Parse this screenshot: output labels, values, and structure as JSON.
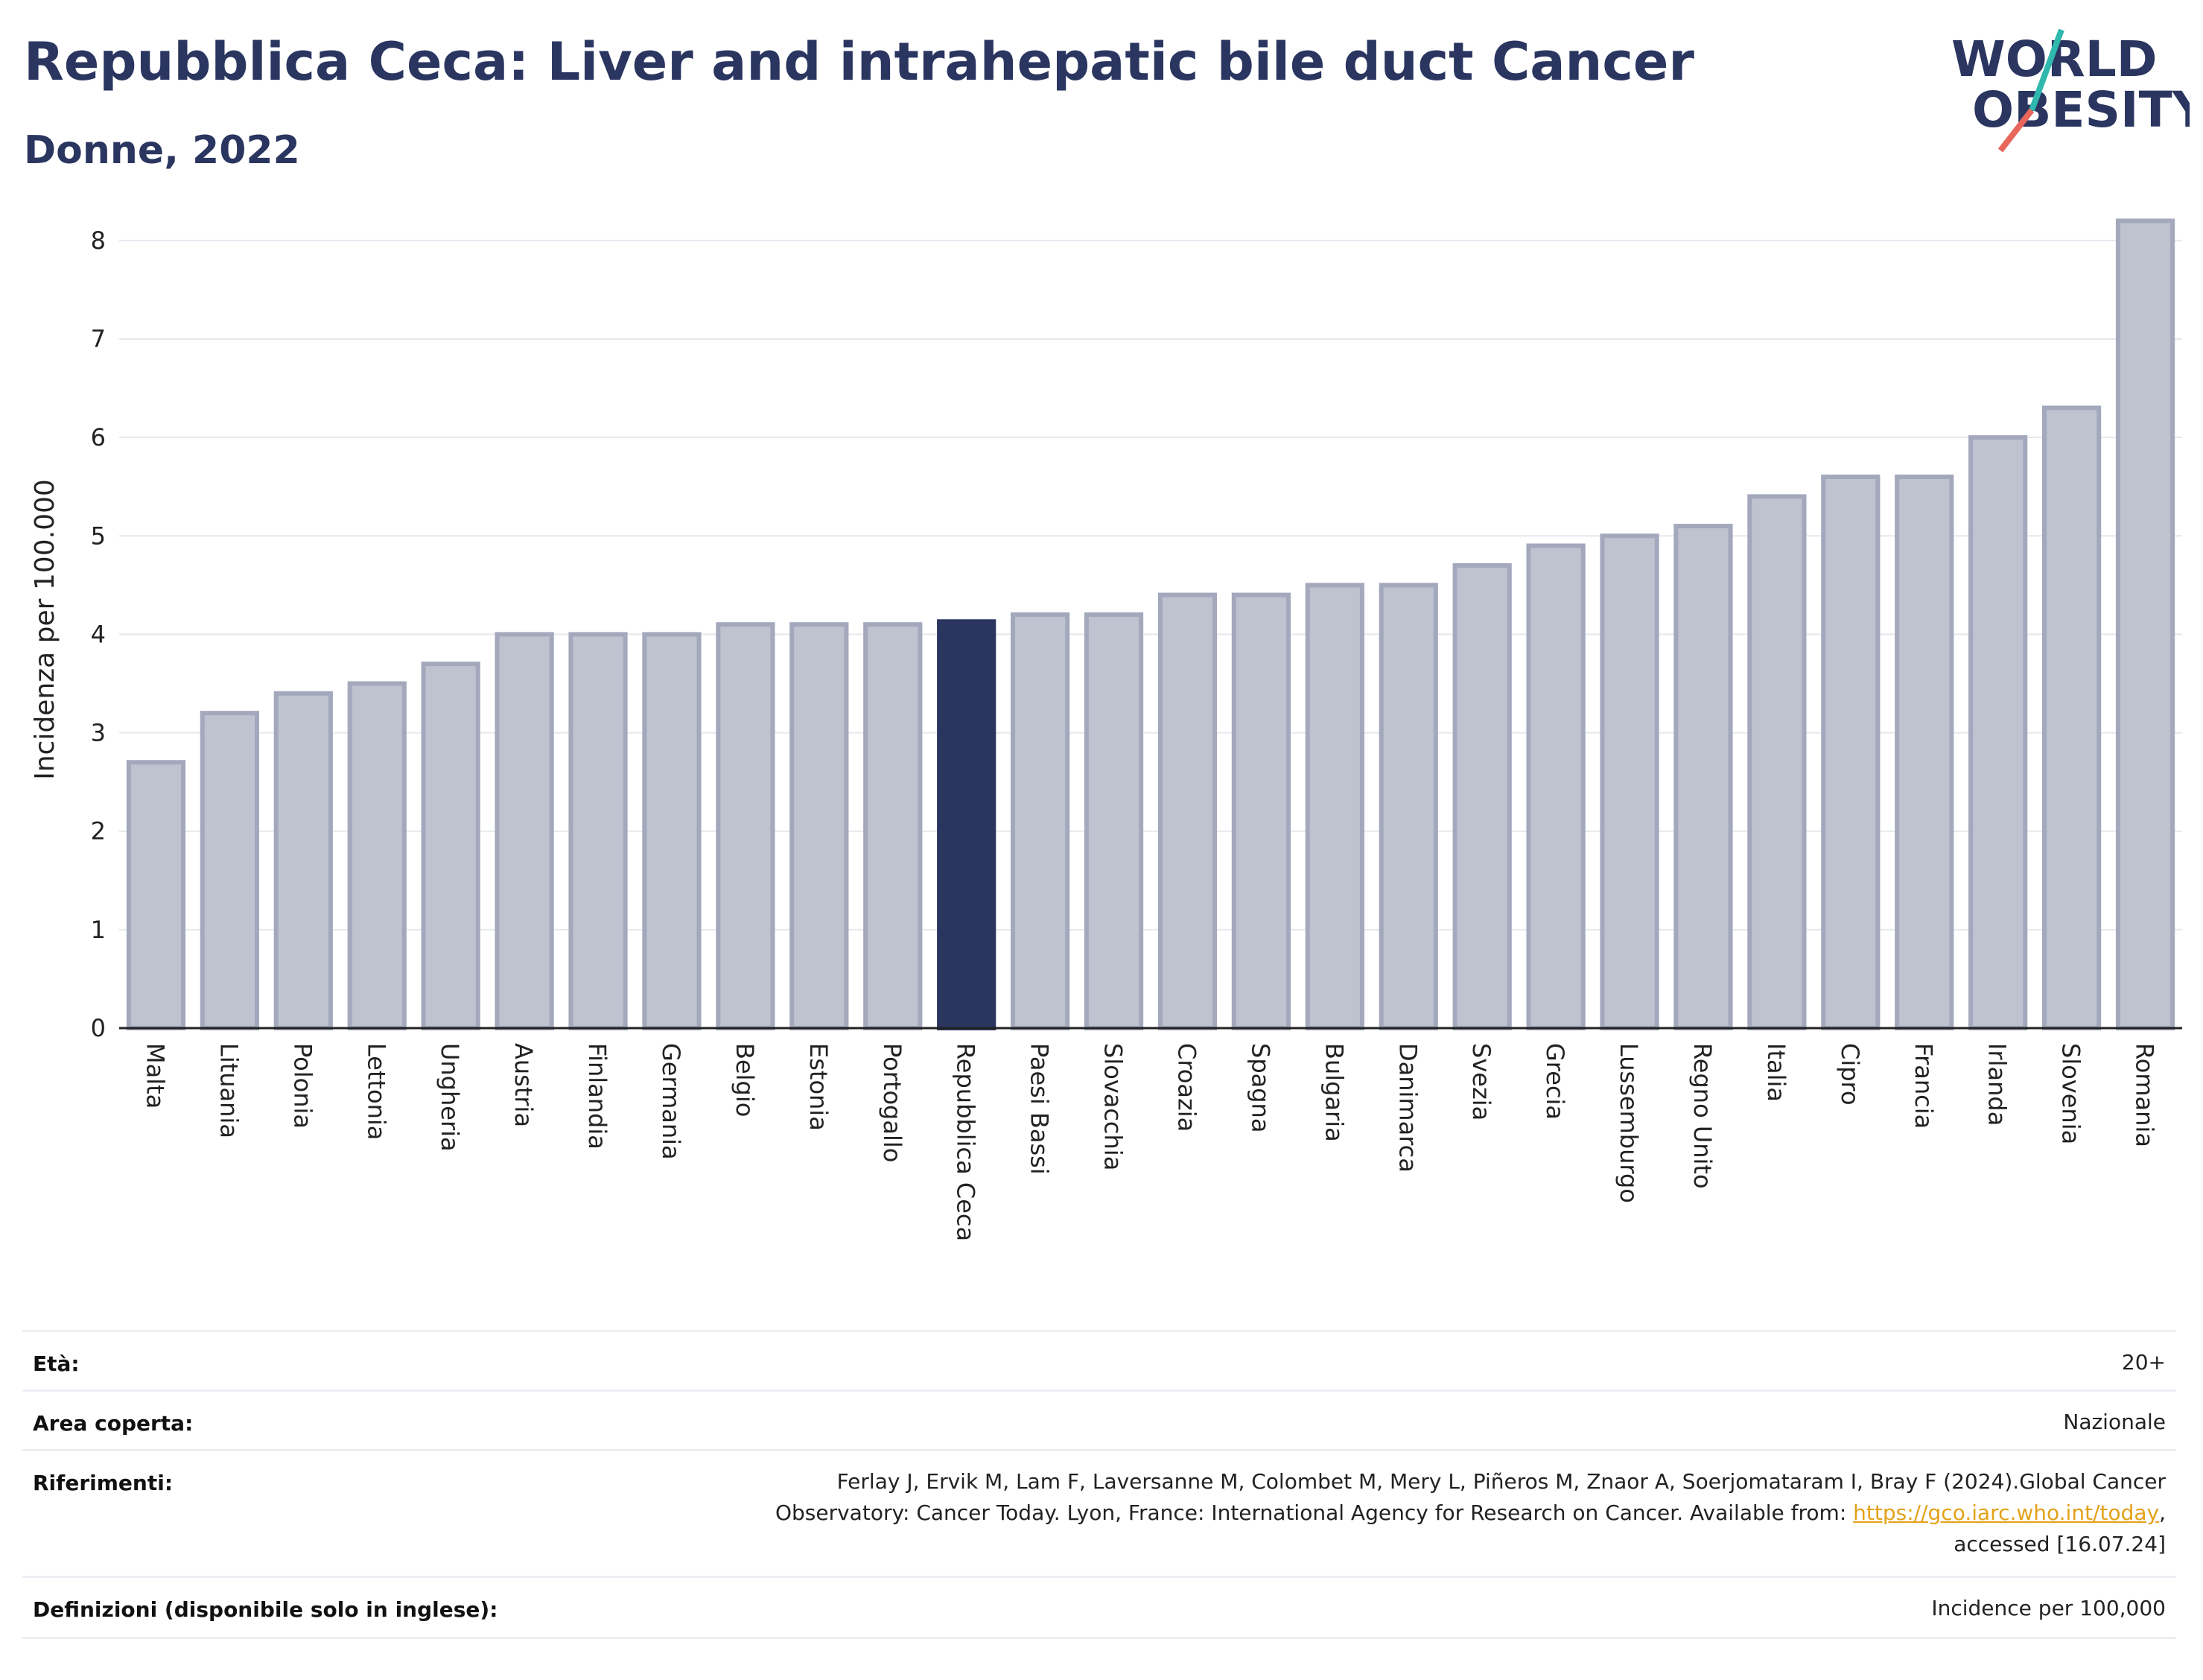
{
  "header": {
    "title": "Repubblica Ceca: Liver and intrahepatic bile duct Cancer",
    "subtitle": "Donne, 2022",
    "logo_line1": "WORLD",
    "logo_line2": "OBESITY"
  },
  "colors": {
    "title": "#2a3560",
    "bar": "#bfc2cf",
    "bar_stroke": "#a3a8bc",
    "highlight": "#2a3560",
    "link": "#e3a21a",
    "logo_teal": "#2fb8ad",
    "logo_red": "#e8675a"
  },
  "chart_data": {
    "type": "bar",
    "ylabel": "Incidenza per 100.000",
    "xlabel": "",
    "ylim": [
      0,
      8.4
    ],
    "yticks": [
      0,
      1,
      2,
      3,
      4,
      5,
      6,
      7,
      8
    ],
    "grid": true,
    "highlight": "Repubblica Ceca",
    "categories": [
      "Malta",
      "Lituania",
      "Polonia",
      "Lettonia",
      "Ungheria",
      "Austria",
      "Finlandia",
      "Germania",
      "Belgio",
      "Estonia",
      "Portogallo",
      "Repubblica Ceca",
      "Paesi Bassi",
      "Slovacchia",
      "Croazia",
      "Spagna",
      "Bulgaria",
      "Danimarca",
      "Svezia",
      "Grecia",
      "Lussemburgo",
      "Regno Unito",
      "Italia",
      "Cipro",
      "Francia",
      "Irlanda",
      "Slovenia",
      "Romania"
    ],
    "values": [
      2.7,
      3.2,
      3.4,
      3.5,
      3.7,
      4.0,
      4.0,
      4.0,
      4.1,
      4.1,
      4.1,
      4.13,
      4.2,
      4.2,
      4.4,
      4.4,
      4.5,
      4.5,
      4.7,
      4.9,
      5.0,
      5.1,
      5.4,
      5.6,
      5.6,
      6.0,
      6.3,
      8.2
    ]
  },
  "meta": {
    "eta_label": "Età:",
    "eta_value": "20+",
    "area_label": "Area coperta:",
    "area_value": "Nazionale",
    "rif_label": "Riferimenti:",
    "rif_line1": "Ferlay J, Ervik M, Lam F, Laversanne M, Colombet M, Mery L, Piñeros M, Znaor A, Soerjomataram I, Bray F (2024).Global Cancer",
    "rif_line2_pre": "Observatory: Cancer Today. Lyon, France: International Agency for Research on Cancer. Available from: ",
    "rif_link": "https://gco.iarc.who.int/today",
    "rif_line2_post": ",",
    "rif_line3": "accessed [16.07.24]",
    "def_label": "Definizioni (disponibile solo in inglese):",
    "def_value": "Incidence per 100,000"
  }
}
